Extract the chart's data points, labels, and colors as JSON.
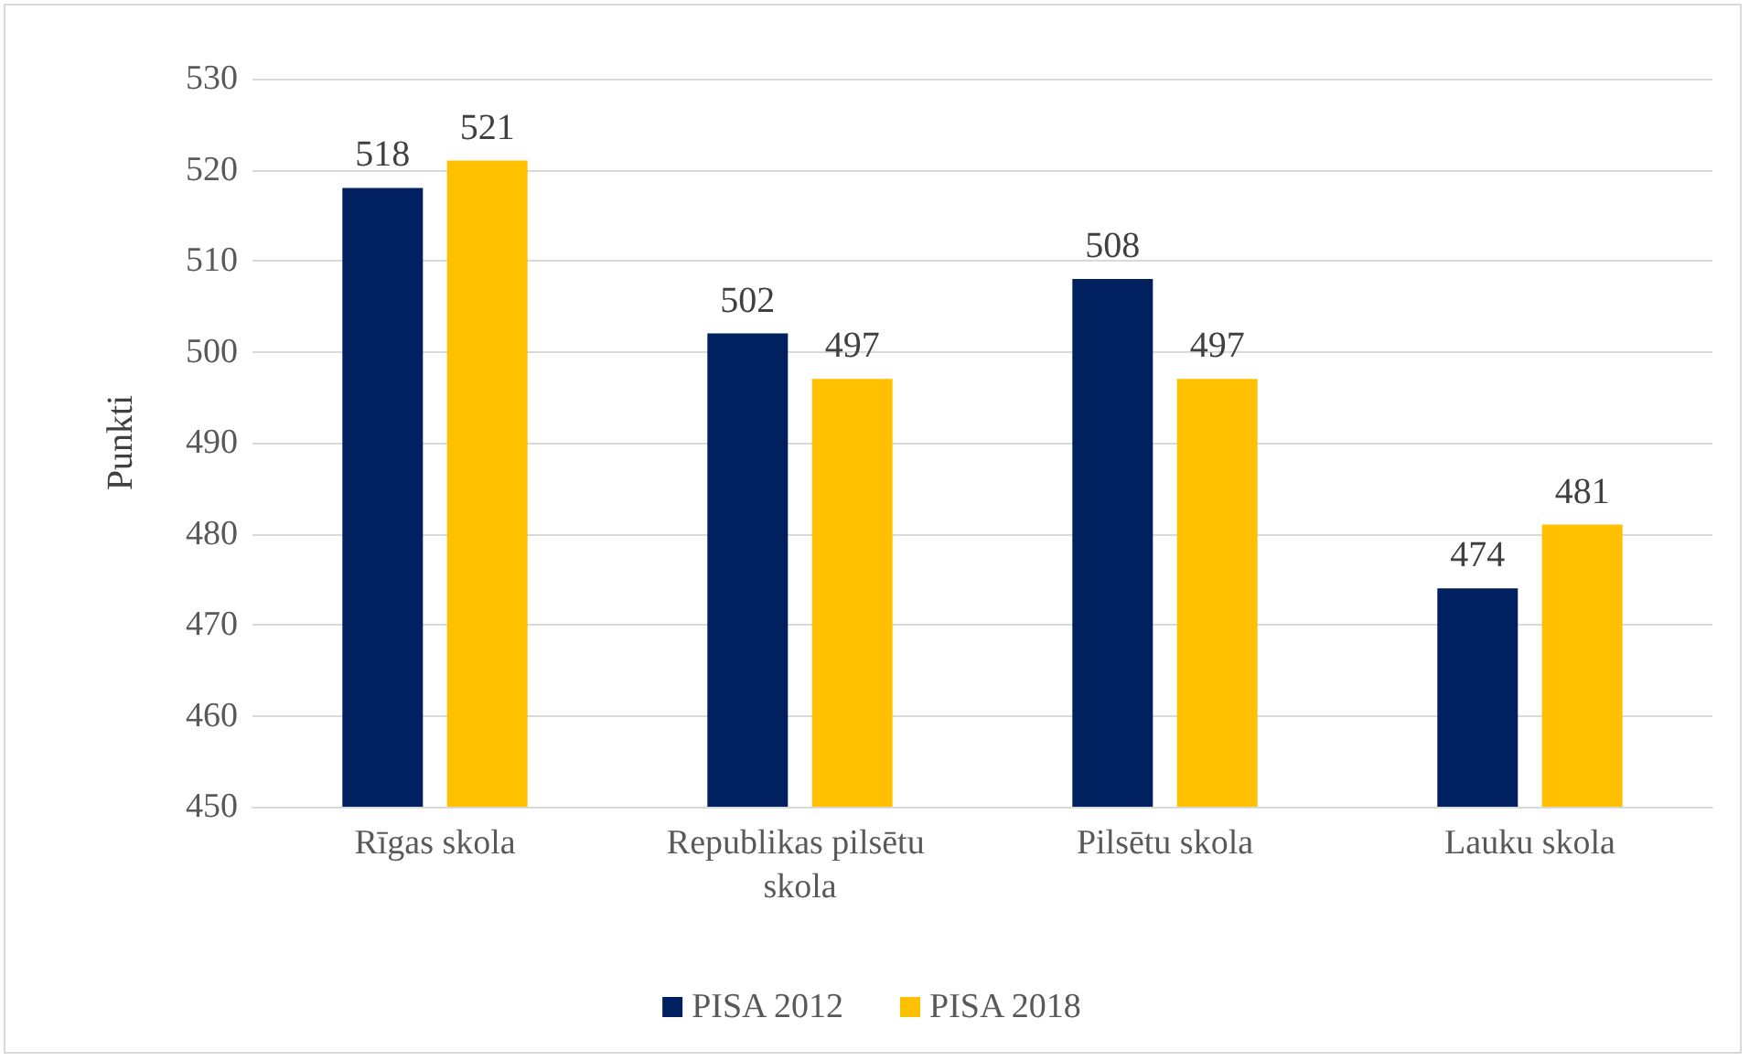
{
  "chart_data": {
    "type": "bar",
    "ylabel": "Punkti",
    "categories": [
      "Rīgas skola",
      "Republikas pilsētu skola",
      "Pilsētu skola",
      "Lauku skola"
    ],
    "series": [
      {
        "name": "PISA 2012",
        "color": "#002060",
        "values": [
          518,
          502,
          508,
          474
        ]
      },
      {
        "name": "PISA 2018",
        "color": "#ffc000",
        "values": [
          521,
          497,
          497,
          481
        ]
      }
    ],
    "ylim": [
      450,
      530
    ],
    "yticks": [
      450,
      460,
      470,
      480,
      490,
      500,
      510,
      520,
      530
    ],
    "grid": "y",
    "legend": "bottom",
    "data_labels": true
  }
}
